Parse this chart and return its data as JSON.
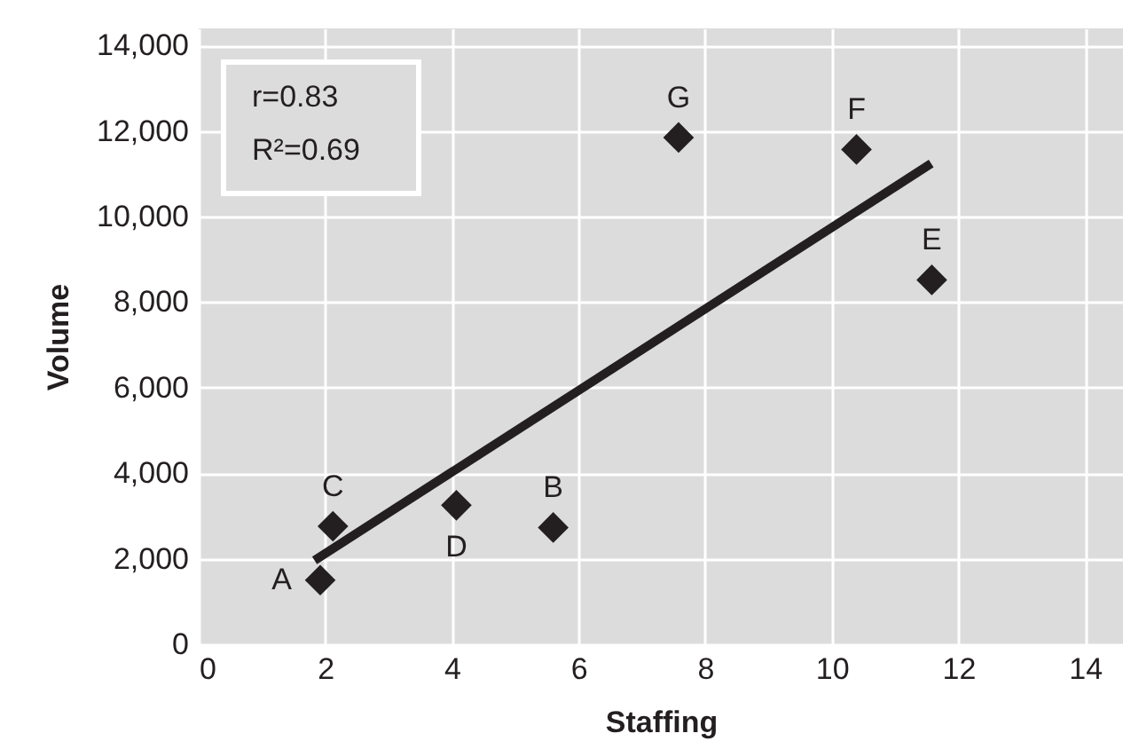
{
  "chart_data": {
    "type": "scatter",
    "xlabel": "Staffing",
    "ylabel": "Volume",
    "xlim": [
      0,
      14.6
    ],
    "ylim": [
      0,
      14400
    ],
    "xticks": [
      0,
      2,
      4,
      6,
      8,
      10,
      12,
      14
    ],
    "yticks": [
      {
        "value": 0,
        "label": "0"
      },
      {
        "value": 2000,
        "label": "2,000"
      },
      {
        "value": 4000,
        "label": "4,000"
      },
      {
        "value": 6000,
        "label": "6,000"
      },
      {
        "value": 8000,
        "label": "8,000"
      },
      {
        "value": 10000,
        "label": "10,000"
      },
      {
        "value": 12000,
        "label": "12,000"
      },
      {
        "value": 14000,
        "label": "14,000"
      }
    ],
    "grid": true,
    "marker": "diamond",
    "series": [
      {
        "color": "#231f20",
        "x": [
          1.92,
          5.6,
          2.12,
          4.07,
          11.58,
          10.39,
          7.58
        ],
        "values": [
          1500,
          2730,
          2760,
          3250,
          8520,
          11570,
          11850
        ]
      },
      {
        "type": "line",
        "color": "#231f20",
        "marker": "none",
        "line_style": "solid",
        "x": [
          1.83,
          11.57
        ],
        "values": [
          1960,
          11240
        ]
      }
    ],
    "annotations": [
      "r=0.83",
      "R²=0.69",
      {
        "text": "A",
        "x": 1.92,
        "y": 1500
      },
      {
        "text": "B",
        "x": 5.6,
        "y": 2730
      },
      {
        "text": "C",
        "x": 2.12,
        "y": 2760
      },
      {
        "text": "D",
        "x": 4.07,
        "y": 3250
      },
      {
        "text": "E",
        "x": 11.58,
        "y": 8520
      },
      {
        "text": "F",
        "x": 10.39,
        "y": 11570
      },
      {
        "text": "G",
        "x": 7.58,
        "y": 11850
      }
    ]
  }
}
